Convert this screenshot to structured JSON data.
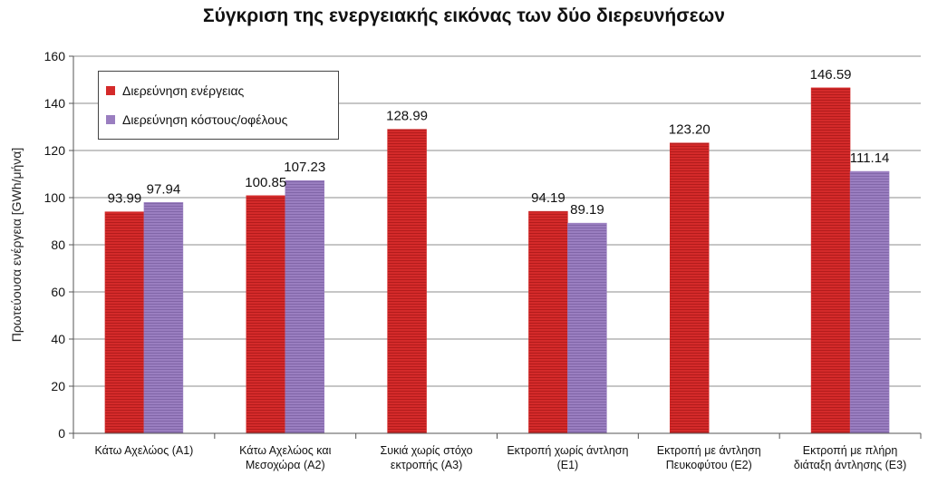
{
  "chart_data": {
    "type": "bar",
    "title": "Σύγκριση της ενεργειακής εικόνας των δύο διερευνήσεων",
    "ylabel": "Πρωτεύουσα ενέργεια [GWh/μήνα]",
    "xlabel": "",
    "ylim": [
      0,
      160
    ],
    "yticks": [
      "0",
      "20",
      "40",
      "60",
      "80",
      "100",
      "120",
      "140",
      "160"
    ],
    "grid": true,
    "legend_position": "top-left",
    "categories": [
      [
        "Κάτω Αχελώος (Α1)"
      ],
      [
        "Κάτω Αχελώος και",
        "Μεσοχώρα (Α2)"
      ],
      [
        "Συκιά χωρίς στόχο",
        "εκτροπής (Α3)"
      ],
      [
        "Εκτροπή χωρίς άντληση",
        "(Ε1)"
      ],
      [
        "Εκτροπή με άντληση",
        "Πευκοφύτου (Ε2)"
      ],
      [
        "Εκτροπή με πλήρη",
        "διάταξη άντλησης (Ε3)"
      ]
    ],
    "series": [
      {
        "name": "Διερεύνηση ενέργειας",
        "color": "#d42a2a",
        "values": [
          93.99,
          100.85,
          128.99,
          94.19,
          123.2,
          146.59
        ],
        "labels": [
          "93.99",
          "100.85",
          "128.99",
          "94.19",
          "123.20",
          "146.59"
        ]
      },
      {
        "name": "Διερεύνηση κόστους/οφέλους",
        "color": "#9a7ec0",
        "values": [
          97.94,
          107.23,
          null,
          89.19,
          null,
          111.14
        ],
        "labels": [
          "97.94",
          "107.23",
          null,
          "89.19",
          null,
          "111.14"
        ]
      }
    ]
  }
}
